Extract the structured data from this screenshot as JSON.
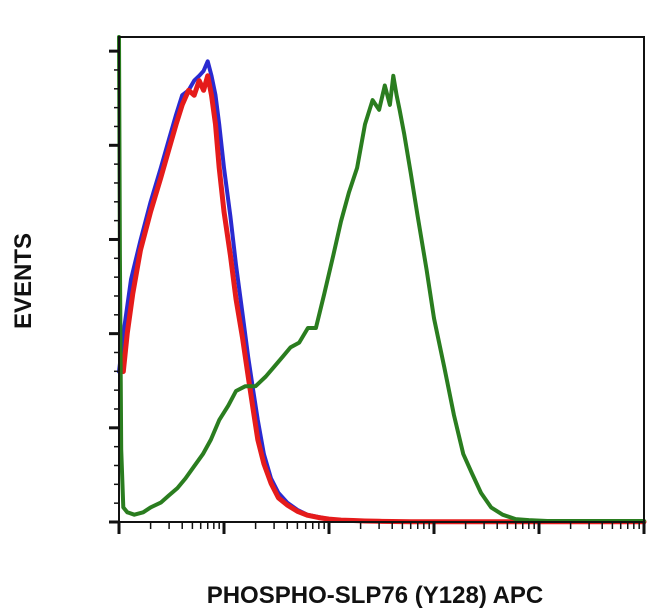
{
  "chart_data": {
    "type": "line",
    "title": "",
    "xlabel": "PHOSPHO-SLP76 (Y128) APC",
    "ylabel": "EVENTS",
    "x_scale": "log",
    "xlim": [
      1,
      100000
    ],
    "ylim": [
      0,
      100
    ],
    "grid": false,
    "legend": "none",
    "series": [
      {
        "color": "#2a2ad0",
        "x": [
          1,
          1.12,
          1.3,
          1.6,
          2.0,
          2.5,
          3.0,
          3.5,
          4.0,
          4.6,
          5.2,
          5.8,
          6.4,
          7.0,
          7.6,
          8.3,
          9.0,
          10,
          11.5,
          13,
          15,
          17,
          19,
          21,
          24,
          28,
          33,
          40,
          50,
          62,
          80,
          100,
          130,
          170,
          220,
          300,
          400,
          600,
          1000,
          2000,
          5000,
          100000
        ],
        "values": [
          31,
          40,
          50,
          58,
          66,
          73,
          79,
          84,
          88,
          89,
          91,
          92,
          93,
          95,
          92,
          88,
          82,
          73,
          63,
          53,
          43,
          34,
          27,
          21,
          14,
          9,
          6,
          4,
          2.5,
          1.5,
          1,
          0.6,
          0.4,
          0.3,
          0.2,
          0.15,
          0.1,
          0.05,
          0.05,
          0.05,
          0.05,
          0.05
        ]
      },
      {
        "color": "#e51b1b",
        "x": [
          1.1,
          1.2,
          1.35,
          1.6,
          2.0,
          2.5,
          3.0,
          3.5,
          4.0,
          4.6,
          5.2,
          5.8,
          6.4,
          7.0,
          7.6,
          8.3,
          9.0,
          10,
          11.5,
          13,
          15,
          17,
          19,
          21,
          24,
          28,
          33,
          40,
          50,
          62,
          80,
          100,
          130,
          170,
          220,
          300,
          400,
          600,
          1000,
          2000,
          5000,
          100000
        ],
        "values": [
          31,
          39,
          47,
          56,
          64,
          71,
          77,
          82,
          86,
          89,
          88,
          91,
          89,
          92,
          88,
          82,
          73,
          64,
          55,
          46,
          38,
          30,
          23,
          17,
          12,
          8,
          5,
          3.5,
          2.2,
          1.4,
          0.9,
          0.6,
          0.4,
          0.3,
          0.2,
          0.15,
          0.1,
          0.05,
          0.05,
          0.05,
          0.05,
          0.05
        ]
      },
      {
        "color": "#2a7d1f",
        "x": [
          1,
          1.02,
          1.05,
          1.1,
          1.2,
          1.4,
          1.7,
          2.0,
          2.5,
          3.0,
          3.6,
          4.3,
          5.2,
          6.3,
          7.5,
          9.0,
          11,
          13,
          16,
          20,
          25,
          30,
          36,
          43,
          52,
          63,
          75,
          90,
          110,
          130,
          155,
          185,
          220,
          260,
          300,
          340,
          380,
          410,
          440,
          470,
          520,
          600,
          700,
          850,
          1000,
          1250,
          1550,
          1900,
          2300,
          2800,
          3500,
          4500,
          6000,
          8000,
          12000,
          20000,
          40000,
          70000,
          100000
        ],
        "values": [
          100,
          55,
          15,
          3,
          2,
          1.5,
          2,
          3,
          4,
          5.5,
          7,
          9,
          11.5,
          14,
          17,
          21,
          24,
          27,
          28,
          28,
          30,
          32,
          34,
          36,
          37,
          40,
          40,
          47,
          55,
          62,
          68,
          73,
          82,
          87,
          85,
          90,
          86,
          92,
          88,
          85,
          80,
          72,
          63,
          52,
          42,
          32,
          22,
          14,
          10,
          6,
          3,
          1.5,
          0.6,
          0.4,
          0.2,
          0.2,
          0.2,
          0.2,
          0.2
        ]
      }
    ]
  }
}
